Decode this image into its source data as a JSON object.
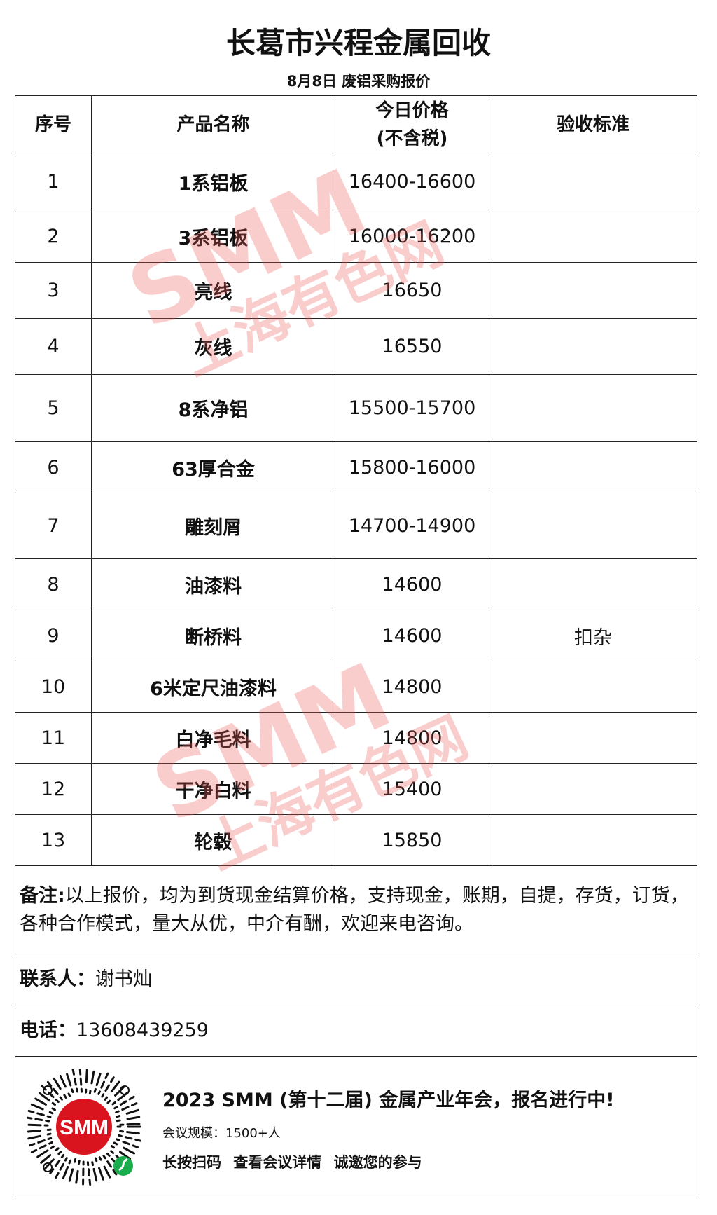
{
  "title": "长葛市兴程金属回收",
  "subtitle": "8月8日 废铝采购报价",
  "headers": [
    "序号",
    "产品名称",
    "今日价格",
    "(不含税)",
    "验收标准"
  ],
  "rows": [
    {
      "no": "1",
      "name": "1系铝板",
      "price": "16400-16600",
      "std": ""
    },
    {
      "no": "2",
      "name": "3系铝板",
      "price": "16000-16200",
      "std": ""
    },
    {
      "no": "3",
      "name": "亮线",
      "price": "16650",
      "std": ""
    },
    {
      "no": "4",
      "name": "灰线",
      "price": "16550",
      "std": ""
    },
    {
      "no": "5",
      "name": "8系净铝",
      "price": "15500-15700",
      "std": ""
    },
    {
      "no": "6",
      "name": "63厚合金",
      "price": "15800-16000",
      "std": ""
    },
    {
      "no": "7",
      "name": "雕刻屑",
      "price": "14700-14900",
      "std": ""
    },
    {
      "no": "8",
      "name": "油漆料",
      "price": "14600",
      "std": ""
    },
    {
      "no": "9",
      "name": "断桥料",
      "price": "14600",
      "std": "扣杂"
    },
    {
      "no": "10",
      "name": "6米定尺油漆料",
      "price": "14800",
      "std": ""
    },
    {
      "no": "11",
      "name": "白净毛料",
      "price": "14800",
      "std": ""
    },
    {
      "no": "12",
      "name": "干净白料",
      "price": "15400",
      "std": ""
    },
    {
      "no": "13",
      "name": "轮毂",
      "price": "15850",
      "std": ""
    }
  ],
  "note": {
    "label": "备注:",
    "text": "以上报价，均为到货现金结算价格，支持现金，账期，自提，存货，订货，各种合作模式，量大从优，中介有酬，欢迎来电咨询。"
  },
  "contact": {
    "label": "联系人：",
    "value": "谢书灿"
  },
  "phone": {
    "label": "电话：",
    "value": "13608439259"
  },
  "ad": {
    "title": "2023 SMM (第十二届) 金属产业年会，报名进行中!",
    "scale": "会议规模：1500+人",
    "cta": "长按扫码 查看会议详情 诚邀您的参与",
    "logo": "SMM"
  },
  "watermark": {
    "brand": "SMM",
    "cn": "上海有色网",
    "color": "#f05a5a"
  }
}
